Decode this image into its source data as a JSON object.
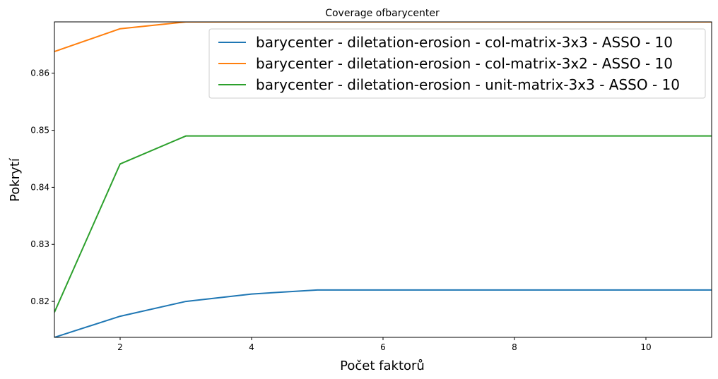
{
  "chart_data": {
    "type": "line",
    "title": "Coverage ofbarycenter",
    "xlabel": "Počet faktorů",
    "ylabel": "Pokrytí",
    "xlim": [
      1,
      11
    ],
    "ylim": [
      0.8137,
      0.869
    ],
    "xticks": [
      2,
      4,
      6,
      8,
      10
    ],
    "xtick_labels": [
      "2",
      "4",
      "6",
      "8",
      "10"
    ],
    "yticks": [
      0.82,
      0.83,
      0.84,
      0.85,
      0.86
    ],
    "ytick_labels": [
      "0.82",
      "0.83",
      "0.84",
      "0.85",
      "0.86"
    ],
    "grid": false,
    "legend_position": "top-right",
    "x": [
      1,
      2,
      3,
      4,
      5,
      6,
      7,
      8,
      9,
      10,
      11
    ],
    "series": [
      {
        "name": "barycenter - diletation-erosion - col-matrix-3x3 - ASSO - 10",
        "color": "#1f77b4",
        "values": [
          0.8137,
          0.8174,
          0.82,
          0.8213,
          0.822,
          0.822,
          0.822,
          0.822,
          0.822,
          0.822,
          0.822
        ]
      },
      {
        "name": "barycenter - diletation-erosion - col-matrix-3x2 - ASSO - 10",
        "color": "#ff7f0e",
        "values": [
          0.8638,
          0.8678,
          0.869,
          0.869,
          0.869,
          0.869,
          0.869,
          0.869,
          0.869,
          0.869,
          0.869
        ]
      },
      {
        "name": "barycenter - diletation-erosion - unit-matrix-3x3 - ASSO - 10",
        "color": "#2ca02c",
        "values": [
          0.8181,
          0.8441,
          0.849,
          0.849,
          0.849,
          0.849,
          0.849,
          0.849,
          0.849,
          0.849,
          0.849
        ]
      }
    ]
  }
}
